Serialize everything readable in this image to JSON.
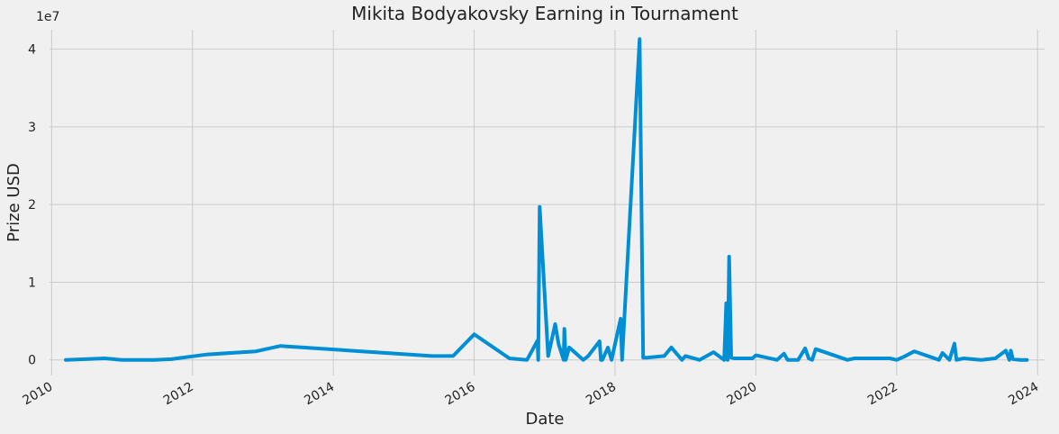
{
  "chart_data": {
    "type": "line",
    "title": "Mikita Bodyakovsky Earning in Tournament",
    "xlabel": "Date",
    "ylabel": "Prize USD",
    "y_offset_label": "1e7",
    "x_ticks": [
      "2010",
      "2012",
      "2014",
      "2016",
      "2018",
      "2020",
      "2022",
      "2024"
    ],
    "y_ticks": [
      "0",
      "1",
      "2",
      "3",
      "4"
    ],
    "y_tick_values": [
      0,
      1,
      2,
      3,
      4
    ],
    "xlim": [
      2009.97,
      2024.1
    ],
    "ylim": [
      -0.2,
      4.25
    ],
    "grid": true,
    "series_color": "#008fd5",
    "series": [
      {
        "x": [
          2010.2,
          2010.75,
          2011.0,
          2011.45,
          2011.7,
          2012.2,
          2012.9,
          2013.25,
          2015.4,
          2015.7,
          2016.0,
          2016.5,
          2016.75,
          2016.78,
          2016.9,
          2016.91,
          2016.93,
          2017.05,
          2017.15,
          2017.2,
          2017.27,
          2017.28,
          2017.3,
          2017.35,
          2017.55,
          2017.62,
          2017.78,
          2017.8,
          2017.82,
          2017.9,
          2017.95,
          2018.08,
          2018.1,
          2018.35,
          2018.4,
          2018.45,
          2018.7,
          2018.8,
          2018.95,
          2019.0,
          2019.2,
          2019.4,
          2019.55,
          2019.58,
          2019.6,
          2019.62,
          2019.65,
          2019.7,
          2019.95,
          2020.0,
          2020.3,
          2020.4,
          2020.45,
          2020.55,
          2020.6,
          2020.7,
          2020.75,
          2020.8,
          2020.85,
          2021.3,
          2021.4,
          2021.9,
          2022.0,
          2022.1,
          2022.25,
          2022.6,
          2022.65,
          2022.75,
          2022.82,
          2022.85,
          2022.95,
          2023.2,
          2023.4,
          2023.55,
          2023.6,
          2023.62,
          2023.65,
          2023.75,
          2023.85
        ],
        "y": [
          0.0,
          0.02,
          0.0,
          0.0,
          0.01,
          0.07,
          0.11,
          0.18,
          0.05,
          0.05,
          0.33,
          0.02,
          0.0,
          0.05,
          0.25,
          0.0,
          1.97,
          0.05,
          0.46,
          0.2,
          0.0,
          0.4,
          0.0,
          0.16,
          0.0,
          0.05,
          0.24,
          0.0,
          0.0,
          0.16,
          0.0,
          0.53,
          0.0,
          4.13,
          0.03,
          0.03,
          0.05,
          0.16,
          0.0,
          0.05,
          0.0,
          0.1,
          0.0,
          0.73,
          0.0,
          1.33,
          0.03,
          0.02,
          0.02,
          0.06,
          0.0,
          0.08,
          0.0,
          0.0,
          0.0,
          0.15,
          0.02,
          0.0,
          0.14,
          0.0,
          0.02,
          0.02,
          0.0,
          0.04,
          0.11,
          0.0,
          0.09,
          0.0,
          0.21,
          0.0,
          0.02,
          0.0,
          0.02,
          0.12,
          0.0,
          0.12,
          0.01,
          0.0,
          0.0
        ]
      }
    ]
  }
}
